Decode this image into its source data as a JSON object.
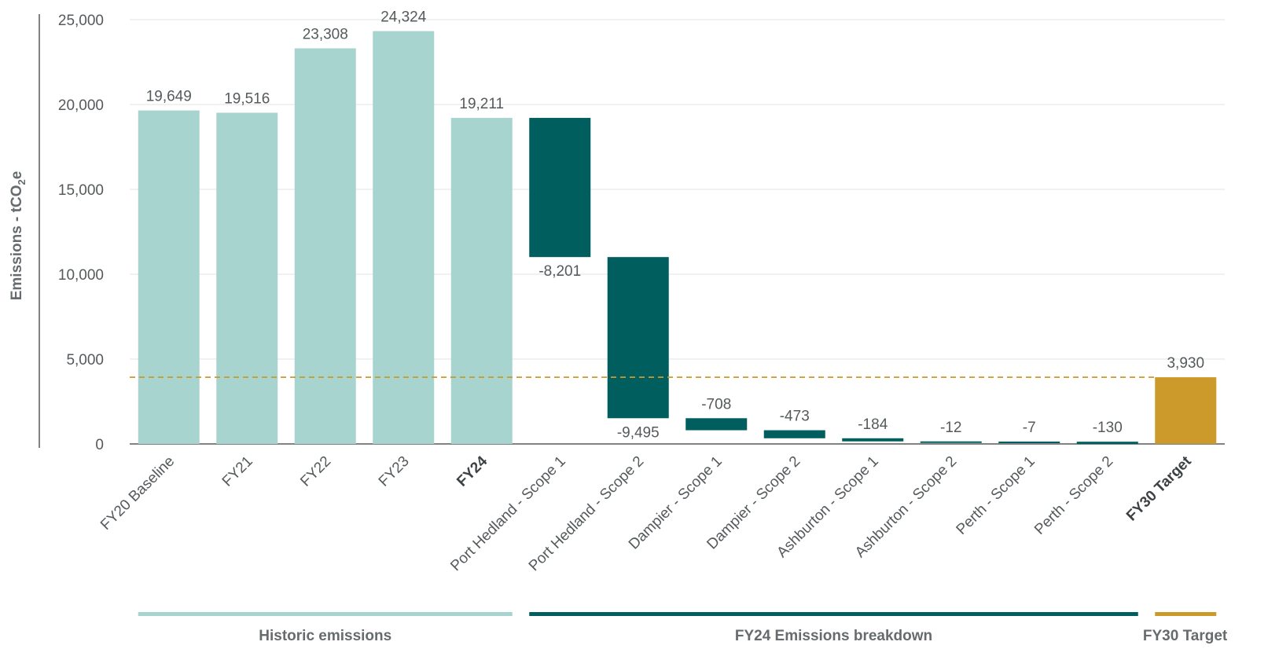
{
  "chart_data": {
    "type": "bar",
    "subtype": "waterfall",
    "title": "",
    "ylabel": "Emissions - tCO2e",
    "ylabel_parts": {
      "main": "Emissions - tCO",
      "subscript": "2",
      "suffix": "e"
    },
    "ylim": [
      0,
      25000
    ],
    "yticks": [
      "0",
      "5,000",
      "10,000",
      "15,000",
      "20,000",
      "25,000"
    ],
    "ytick_values": [
      0,
      5000,
      10000,
      15000,
      20000,
      25000
    ],
    "grid": true,
    "categories": [
      "FY20 Baseline",
      "FY21",
      "FY22",
      "FY23",
      "FY24",
      "Port Hedland - Scope 1",
      "Port Hedland - Scope 2",
      "Dampier - Scope 1",
      "Dampier - Scope 2",
      "Ashburton - Scope 1",
      "Ashburton - Scope 2",
      "Perth - Scope 1",
      "Perth - Scope 2",
      "FY30 Target"
    ],
    "bold_categories": [
      "FY24",
      "FY30 Target"
    ],
    "values": [
      19649,
      19516,
      23308,
      24324,
      19211,
      -8201,
      -9495,
      -708,
      -473,
      -184,
      -12,
      -7,
      -130,
      3930
    ],
    "value_labels": [
      "19,649",
      "19,516",
      "23,308",
      "24,324",
      "19,211",
      "-8,201",
      "-9,495",
      "-708",
      "-473",
      "-184",
      "-12",
      "-7",
      "-130",
      "3,930"
    ],
    "bar_kinds": [
      "total",
      "total",
      "total",
      "total",
      "total",
      "delta",
      "delta",
      "delta",
      "delta",
      "delta",
      "delta",
      "delta",
      "delta",
      "target"
    ],
    "target_line": 3930,
    "colors": {
      "historic": "#a7d4cf",
      "breakdown": "#005e5f",
      "target": "#cc9a2a",
      "grid": "#e3e3e3",
      "axis": "#555a5c"
    },
    "groups": [
      {
        "label": "Historic emissions",
        "from": 0,
        "to": 4,
        "color": "#a7d4cf"
      },
      {
        "label": "FY24 Emissions breakdown",
        "from": 5,
        "to": 12,
        "color": "#005e5f"
      },
      {
        "label": "FY30 Target",
        "from": 13,
        "to": 13,
        "color": "#cc9a2a"
      }
    ]
  }
}
